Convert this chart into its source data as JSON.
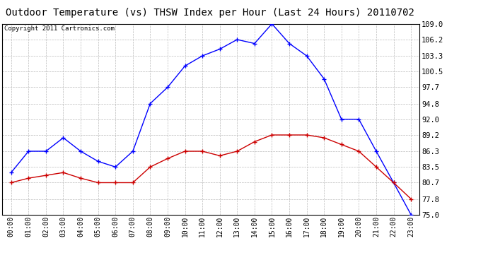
{
  "title": "Outdoor Temperature (vs) THSW Index per Hour (Last 24 Hours) 20110702",
  "copyright": "Copyright 2011 Cartronics.com",
  "hours": [
    "00:00",
    "01:00",
    "02:00",
    "03:00",
    "04:00",
    "05:00",
    "06:00",
    "07:00",
    "08:00",
    "09:00",
    "10:00",
    "11:00",
    "12:00",
    "13:00",
    "14:00",
    "15:00",
    "16:00",
    "17:00",
    "18:00",
    "19:00",
    "20:00",
    "21:00",
    "22:00",
    "23:00"
  ],
  "blue_data": [
    82.5,
    86.3,
    86.3,
    88.7,
    86.3,
    84.5,
    83.5,
    86.3,
    94.8,
    97.7,
    101.5,
    103.3,
    104.5,
    106.2,
    105.5,
    109.0,
    105.5,
    103.3,
    99.2,
    92.0,
    92.0,
    86.3,
    80.7,
    75.0
  ],
  "red_data": [
    80.7,
    81.5,
    82.0,
    82.5,
    81.5,
    80.7,
    80.7,
    80.7,
    83.5,
    85.0,
    86.3,
    86.3,
    85.5,
    86.3,
    88.0,
    89.2,
    89.2,
    89.2,
    88.7,
    87.5,
    86.3,
    83.5,
    80.7,
    77.8
  ],
  "ymin": 75.0,
  "ymax": 109.0,
  "yticks": [
    75.0,
    77.8,
    80.7,
    83.5,
    86.3,
    89.2,
    92.0,
    94.8,
    97.7,
    100.5,
    103.3,
    106.2,
    109.0
  ],
  "blue_color": "#0000ff",
  "red_color": "#cc0000",
  "bg_color": "#ffffff",
  "grid_color": "#bbbbbb",
  "title_fontsize": 10,
  "copyright_fontsize": 6.5,
  "tick_fontsize": 7,
  "ytick_fontsize": 7.5
}
